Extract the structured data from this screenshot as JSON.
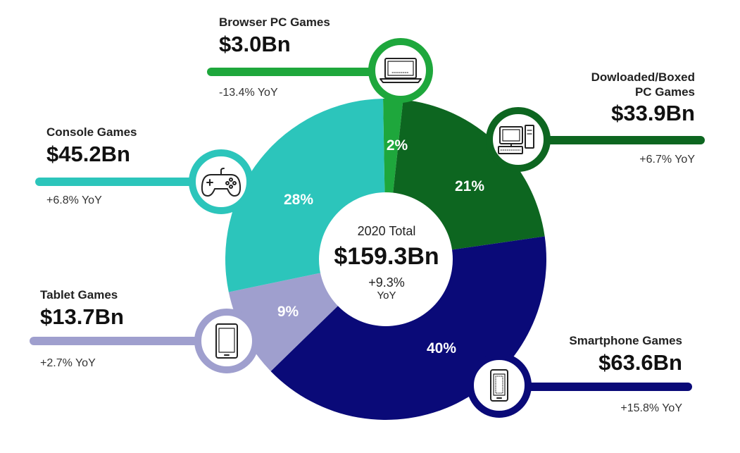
{
  "chart_data": {
    "type": "pie",
    "center": {
      "label": "2020 Total",
      "value": "$159.3Bn",
      "yoy_line1": "+9.3%",
      "yoy_line2": "YoY"
    },
    "segments": [
      {
        "key": "browser",
        "name": "Browser PC Games",
        "value_label": "$3.0Bn",
        "value": 3.0,
        "percent": 2,
        "percent_label": "2%",
        "yoy": "-13.4% YoY",
        "color": "#1ea73c",
        "icon": "laptop-icon"
      },
      {
        "key": "downloaded",
        "name": "Dowloaded/Boxed PC Games",
        "name_line1": "Dowloaded/Boxed",
        "name_line2": "PC Games",
        "value_label": "$33.9Bn",
        "value": 33.9,
        "percent": 21,
        "percent_label": "21%",
        "yoy": "+6.7% YoY",
        "color": "#0d6620",
        "icon": "desktop-computer-icon"
      },
      {
        "key": "smartphone",
        "name": "Smartphone Games",
        "value_label": "$63.6Bn",
        "value": 63.6,
        "percent": 40,
        "percent_label": "40%",
        "yoy": "+15.8% YoY",
        "color": "#0a0a78",
        "icon": "smartphone-icon"
      },
      {
        "key": "tablet",
        "name": "Tablet Games",
        "value_label": "$13.7Bn",
        "value": 13.7,
        "percent": 9,
        "percent_label": "9%",
        "yoy": "+2.7% YoY",
        "color": "#9f9fce",
        "icon": "tablet-icon"
      },
      {
        "key": "console",
        "name": "Console Games",
        "value_label": "$45.2Bn",
        "value": 45.2,
        "percent": 28,
        "percent_label": "28%",
        "yoy": "+6.8% YoY",
        "color": "#2cc5bb",
        "icon": "gamepad-icon"
      }
    ]
  }
}
